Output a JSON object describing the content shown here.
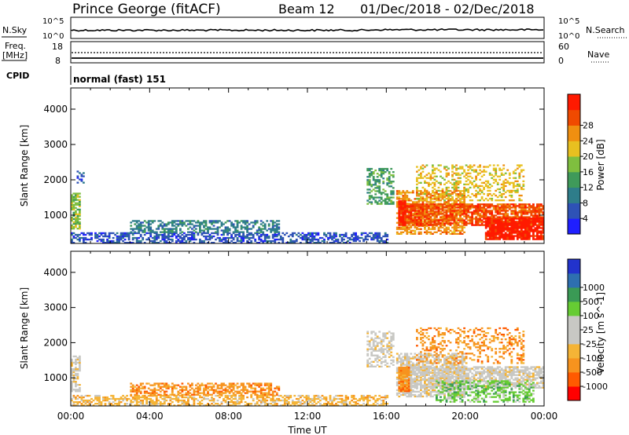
{
  "header": {
    "station": "Prince George (fitACF)",
    "beam": "Beam 12",
    "date_range": "01/Dec/2018 - 02/Dec/2018"
  },
  "nsky_panel": {
    "left_label": "N.Sky",
    "right_label": "N.Search",
    "left_ticks": [
      "10^5",
      "10^0"
    ],
    "right_ticks": [
      "10^5",
      "10^0"
    ]
  },
  "freq_panel": {
    "left_label_1": "Freq.",
    "left_label_2": "[MHz]",
    "right_label": "Nave",
    "left_ticks": [
      "18",
      "8"
    ],
    "right_ticks": [
      "60",
      "0"
    ]
  },
  "cpid": {
    "label": "CPID",
    "value": "normal (fast) 151"
  },
  "colors": {
    "power": [
      "#1f1fff",
      "#2e52b6",
      "#2e7d8a",
      "#3f9a5a",
      "#7fbf3f",
      "#e8c020",
      "#f08f10",
      "#f04a00",
      "#ff1a00"
    ],
    "velocity": [
      "#ff0000",
      "#ff5a00",
      "#f7931e",
      "#f5b436",
      "#c8c8c4",
      "#c8c8c4",
      "#66cc33",
      "#3a9a55",
      "#2e6fb0",
      "#2233cc"
    ]
  },
  "chart_data": [
    {
      "type": "heatmap",
      "name": "power",
      "ylabel": "Slant Range [km]",
      "yticks": [
        "1000",
        "2000",
        "3000",
        "4000"
      ],
      "ylim": [
        200,
        4600
      ],
      "xlim": [
        0,
        24
      ],
      "colorbar": {
        "label": "Power [dB]",
        "ticks": [
          "4",
          "8",
          "12",
          "16",
          "20",
          "24",
          "28"
        ],
        "range": [
          0,
          32
        ]
      },
      "regions": [
        {
          "t0": 0.0,
          "t1": 16.0,
          "r0": 200,
          "r1": 500,
          "level": 1,
          "density": 0.55
        },
        {
          "t0": 3.0,
          "t1": 10.5,
          "r0": 500,
          "r1": 850,
          "level": 2,
          "density": 0.55
        },
        {
          "t0": 0.0,
          "t1": 0.5,
          "r0": 600,
          "r1": 1600,
          "level": 4,
          "density": 0.7
        },
        {
          "t0": 0.3,
          "t1": 0.7,
          "r0": 1900,
          "r1": 2250,
          "level": 1,
          "density": 0.5
        },
        {
          "t0": 15.0,
          "t1": 16.4,
          "r0": 1300,
          "r1": 2300,
          "level": 3,
          "density": 0.5
        },
        {
          "t0": 16.5,
          "t1": 20.0,
          "r0": 450,
          "r1": 1700,
          "level": 6,
          "density": 0.6
        },
        {
          "t0": 16.6,
          "t1": 17.0,
          "r0": 700,
          "r1": 1400,
          "level": 8,
          "density": 0.95
        },
        {
          "t0": 17.0,
          "t1": 24.0,
          "r0": 700,
          "r1": 1300,
          "level": 7,
          "density": 0.75
        },
        {
          "t0": 21.0,
          "t1": 24.0,
          "r0": 300,
          "r1": 900,
          "level": 8,
          "density": 0.85
        },
        {
          "t0": 17.5,
          "t1": 23.0,
          "r0": 1400,
          "r1": 2400,
          "level": 5,
          "density": 0.35
        }
      ]
    },
    {
      "type": "heatmap",
      "name": "velocity",
      "ylabel": "Slant Range [km]",
      "yticks": [
        "1000",
        "2000",
        "3000",
        "4000"
      ],
      "ylim": [
        200,
        4600
      ],
      "xlim": [
        0,
        24
      ],
      "xlabel": "Time UT",
      "xticks": [
        "00:00",
        "04:00",
        "08:00",
        "12:00",
        "16:00",
        "20:00",
        "00:00"
      ],
      "colorbar": {
        "label": "Velocity [m s^-1]",
        "ticks": [
          "-1000",
          "-500",
          "-100",
          "-25",
          "25",
          "100",
          "500",
          "1000"
        ],
        "range": [
          -1000,
          1000
        ]
      },
      "regions": [
        {
          "t0": 0.0,
          "t1": 16.0,
          "r0": 200,
          "r1": 500,
          "level": 3,
          "density": 0.55
        },
        {
          "t0": 3.0,
          "t1": 10.5,
          "r0": 500,
          "r1": 850,
          "level": 2,
          "density": 0.55
        },
        {
          "t0": 0.0,
          "t1": 0.5,
          "r0": 600,
          "r1": 1600,
          "level": 4,
          "density": 0.6
        },
        {
          "t0": 15.0,
          "t1": 16.4,
          "r0": 1300,
          "r1": 2300,
          "level": 4,
          "density": 0.5
        },
        {
          "t0": 16.5,
          "t1": 20.0,
          "r0": 450,
          "r1": 1700,
          "level": 4,
          "density": 0.6
        },
        {
          "t0": 16.6,
          "t1": 17.2,
          "r0": 600,
          "r1": 1300,
          "level": 2,
          "density": 0.85
        },
        {
          "t0": 17.2,
          "t1": 24.0,
          "r0": 700,
          "r1": 1300,
          "level": 4,
          "density": 0.7
        },
        {
          "t0": 18.5,
          "t1": 23.5,
          "r0": 300,
          "r1": 900,
          "level": 6,
          "density": 0.45
        },
        {
          "t0": 17.5,
          "t1": 23.0,
          "r0": 1400,
          "r1": 2400,
          "level": 2,
          "density": 0.3
        }
      ]
    }
  ]
}
